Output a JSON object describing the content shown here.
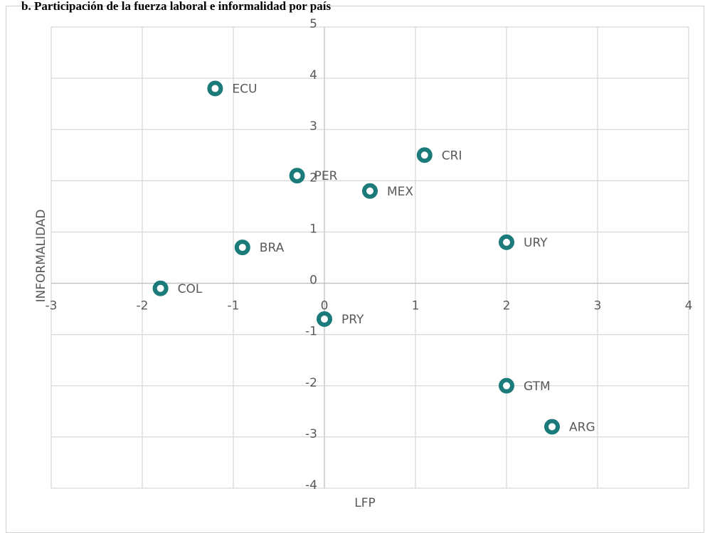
{
  "chart_data": {
    "type": "scatter",
    "title": "b.    Participación de la fuerza laboral e informalidad por país",
    "x_label": "LFP",
    "y_label": "INFORMALIDAD",
    "point_labels": [
      "ECU",
      "CRI",
      "PER",
      "MEX",
      "URY",
      "BRA",
      "COL",
      "PRY",
      "GTM",
      "ARG"
    ],
    "x": [
      -1.2,
      1.1,
      -0.3,
      0.5,
      2,
      -0.9,
      -1.8,
      0,
      2,
      2.5
    ],
    "values": [
      3.8,
      2.5,
      2.1,
      1.8,
      0.8,
      0.7,
      -0.1,
      -0.7,
      -2,
      -2.8
    ],
    "color": "#1b7a7a",
    "xlim": [
      -3,
      4
    ],
    "xticks": [
      -3,
      -2,
      -1,
      0,
      1,
      2,
      3,
      4
    ],
    "ylim": [
      -4,
      5
    ],
    "yticks": [
      -4,
      -3,
      -2,
      -1,
      0,
      1,
      2,
      3,
      4,
      5
    ],
    "grid": true
  }
}
